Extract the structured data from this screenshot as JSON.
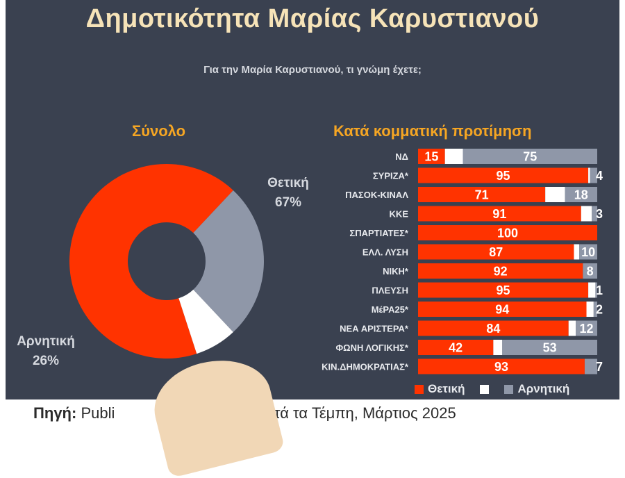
{
  "title": "Δημοτικότητα Μαρίας Καρυστιανού",
  "subtitle": "Για την Μαρία Καρυστιανού, τι γνώμη έχετε;",
  "colors": {
    "positive": "#ff3300",
    "neutral": "#ffffff",
    "negative": "#8f97a8",
    "background": "#3a4150",
    "title": "#f6e3b8",
    "section_title": "#f6a623"
  },
  "source": {
    "label": "Πηγή:",
    "text": "Publi",
    "tail": "όνια μετά τα Τέμπη, Μάρτιος 2025"
  },
  "chart_data": [
    {
      "type": "pie",
      "title": "Σύνολο",
      "donut": true,
      "slices": [
        {
          "name": "Θετική",
          "value": 67,
          "label": "Θετική",
          "value_label": "67%",
          "color": "#ff3300"
        },
        {
          "name": "Αρνητική",
          "value": 26,
          "label": "Αρνητική",
          "value_label": "26%",
          "color": "#8f97a8"
        },
        {
          "name": "",
          "value": 7,
          "color": "#ffffff"
        }
      ]
    },
    {
      "type": "bar",
      "orientation": "horizontal",
      "stacked": true,
      "title": "Κατά κομματική προτίμηση",
      "categories": [
        "ΝΔ",
        "ΣΥΡΙΖΑ*",
        "ΠΑΣΟΚ-ΚΙΝΑΛ",
        "ΚΚΕ",
        "ΣΠΑΡΤΙΑΤΕΣ*",
        "ΕΛΛ. ΛΥΣΗ",
        "ΝΙΚΗ*",
        "ΠΛΕΥΣΗ",
        "ΜέΡΑ25*",
        "ΝΕΑ ΑΡΙΣΤΕΡΑ*",
        "ΦΩΝΗ ΛΟΓΙΚΗΣ*",
        "ΚΙΝ.ΔΗΜΟΚΡΑΤΙΑΣ*"
      ],
      "series": [
        {
          "name": "Θετική",
          "values": [
            15,
            95,
            71,
            91,
            100,
            87,
            92,
            95,
            94,
            84,
            42,
            93
          ],
          "color": "#ff3300"
        },
        {
          "name": "",
          "values": [
            10,
            1,
            11,
            6,
            0,
            3,
            0,
            4,
            4,
            4,
            5,
            0
          ],
          "color": "#ffffff"
        },
        {
          "name": "Αρνητική",
          "values": [
            75,
            4,
            18,
            3,
            0,
            10,
            8,
            1,
            2,
            12,
            53,
            7
          ],
          "color": "#8f97a8"
        }
      ],
      "xlim": [
        0,
        100
      ],
      "legend": "bottom"
    }
  ]
}
